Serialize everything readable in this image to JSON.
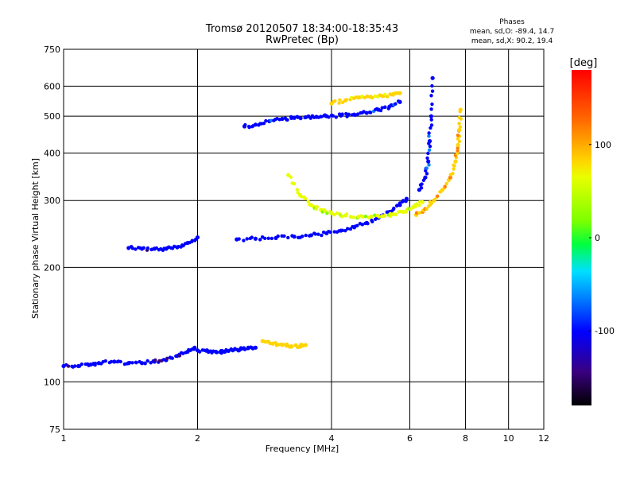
{
  "chart_data": {
    "type": "scatter",
    "title_line1": "Tromsø 20120507 18:34:00-18:35:43",
    "title_line2": "RwPretec (Bp)",
    "xlabel": "Frequency [MHz]",
    "ylabel": "Stationary phase Virtual Height [km]",
    "x_scale": "log",
    "y_scale": "log",
    "xlim": [
      1,
      12
    ],
    "ylim": [
      75,
      750
    ],
    "x_ticks": [
      1,
      2,
      4,
      6,
      8,
      10,
      12
    ],
    "y_ticks": [
      75,
      100,
      200,
      300,
      400,
      500,
      600,
      750
    ],
    "grid": true,
    "phases_box": {
      "heading": "Phases",
      "line_o": "mean, sd,O: -89.4, 14.7",
      "line_x": "mean, sd,X:  90.2, 19.4"
    },
    "colorbar": {
      "label": "[deg]",
      "range": [
        -180,
        180
      ],
      "ticks": [
        100,
        0,
        -100
      ]
    },
    "series": [
      {
        "segments": [
          {
            "x": [
              1.0,
              1.08,
              1.15,
              1.2,
              1.3,
              1.4,
              1.5,
              1.6,
              1.7,
              1.8,
              1.9,
              1.97
            ],
            "y": [
              110,
              110,
              111,
              112,
              113,
              112,
              112,
              113,
              114,
              117,
              120,
              123
            ]
          }
        ],
        "phase": -110
      },
      {
        "segments": [
          {
            "x": [
              2.0,
              2.1,
              2.2,
              2.3,
              2.4,
              2.5,
              2.6,
              2.7
            ],
            "y": [
              121,
              121,
              120,
              120,
              121,
              122,
              123,
              123
            ]
          }
        ],
        "phase": -105
      },
      {
        "segments": [
          {
            "x": [
              2.45,
              2.7,
              3.0,
              3.3,
              3.6,
              3.9,
              4.2,
              4.5,
              4.8,
              5.1,
              5.4,
              5.7,
              5.9
            ],
            "y": [
              237,
              238,
              239,
              241,
              243,
              246,
              250,
              255,
              262,
              270,
              280,
              292,
              303
            ]
          }
        ],
        "phase": -105
      },
      {
        "segments": [
          {
            "x": [
              1.4,
              1.5,
              1.6,
              1.7,
              1.8,
              1.9,
              2.0
            ],
            "y": [
              225,
              224,
              224,
              224,
              226,
              232,
              240
            ]
          }
        ],
        "phase": -108
      },
      {
        "segments": [
          {
            "x": [
              2.55,
              2.7,
              2.9,
              3.1,
              3.3,
              3.5,
              3.7,
              3.9,
              4.2,
              4.5,
              4.8,
              5.1,
              5.4,
              5.7
            ],
            "y": [
              470,
              475,
              485,
              492,
              495,
              497,
              498,
              500,
              502,
              505,
              510,
              520,
              530,
              545
            ]
          }
        ],
        "phase": -95
      },
      {
        "segments": [
          {
            "x": [
              3.2,
              3.4,
              3.6,
              3.8,
              4.0,
              4.3,
              4.6,
              4.9,
              5.2,
              5.5,
              5.8,
              6.1,
              6.4
            ],
            "y": [
              350,
              310,
              292,
              283,
              278,
              274,
              272,
              272,
              273,
              276,
              280,
              288,
              297
            ]
          }
        ],
        "phase": 60
      },
      {
        "segments": [
          {
            "x": [
              6.2,
              6.5,
              6.8,
              7.1,
              7.4,
              7.6,
              7.7,
              7.75,
              7.8
            ],
            "y": [
              275,
              285,
              300,
              320,
              345,
              380,
              420,
              460,
              520
            ]
          }
        ],
        "phase": 100
      },
      {
        "segments": [
          {
            "x": [
              6.3,
              6.5,
              6.6,
              6.65,
              6.7,
              6.75
            ],
            "y": [
              320,
              345,
              380,
              430,
              500,
              630
            ]
          }
        ],
        "phase": -95
      },
      {
        "segments": [
          {
            "x": [
              4.0,
              4.3,
              4.6,
              4.9,
              5.2,
              5.5,
              5.7
            ],
            "y": [
              540,
              550,
              560,
              562,
              565,
              570,
              575
            ]
          }
        ],
        "phase": 90
      },
      {
        "segments": [
          {
            "x": [
              2.8,
              2.95,
              3.1,
              3.25,
              3.4,
              3.5
            ],
            "y": [
              128,
              126,
              125,
              124,
              124,
              125
            ]
          }
        ],
        "phase": 95
      }
    ]
  }
}
